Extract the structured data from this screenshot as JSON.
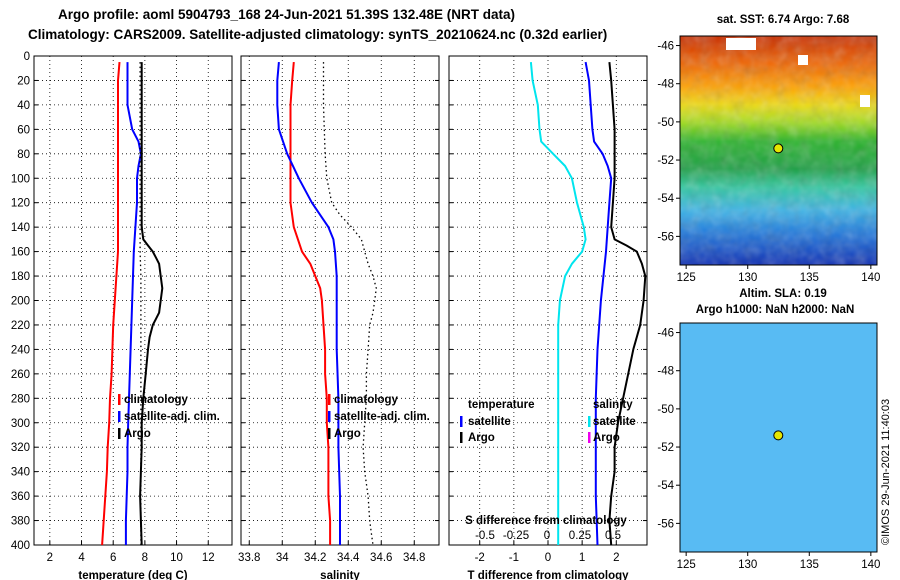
{
  "header": {
    "line1": "Argo profile: aoml 5904793_168 24-Jun-2021 51.39S 132.48E (NRT data)",
    "line2": "Climatology: CARS2009. Satellite-adjusted climatology: synTS_20210624.nc (0.32d earlier)"
  },
  "colors": {
    "argo": "#000000",
    "climatology": "#ff0000",
    "satellite": "#0000ff",
    "diff_temp": "#00e5ee",
    "diff_sal_argo": "#ee00ee"
  },
  "depth_axis": {
    "ticks": [
      0,
      20,
      40,
      60,
      80,
      100,
      120,
      140,
      160,
      180,
      200,
      220,
      240,
      260,
      280,
      300,
      320,
      340,
      360,
      380,
      400
    ],
    "range": [
      0,
      400
    ]
  },
  "chart_data": [
    {
      "type": "line",
      "title": "",
      "xlabel": "temperature (deg C)",
      "ylabel": "",
      "xlim": [
        1,
        13.5
      ],
      "ylim": [
        400,
        0
      ],
      "xticks": [
        2,
        4,
        6,
        8,
        10,
        12
      ],
      "legend": {
        "items": [
          {
            "label": "climatology",
            "color": "#ff0000"
          },
          {
            "label": "satellite-adj. clim.",
            "color": "#0000ff"
          },
          {
            "label": "Argo",
            "color": "#000000"
          }
        ]
      },
      "series": [
        {
          "name": "climatology",
          "color": "#ff0000",
          "dash": false,
          "depth": [
            5,
            20,
            40,
            60,
            80,
            100,
            120,
            140,
            160,
            180,
            200,
            220,
            240,
            260,
            280,
            300,
            320,
            340,
            360,
            380,
            400
          ],
          "values": [
            6.4,
            6.3,
            6.3,
            6.3,
            6.3,
            6.3,
            6.3,
            6.3,
            6.3,
            6.2,
            6.1,
            6.0,
            5.95,
            5.9,
            5.8,
            5.75,
            5.65,
            5.6,
            5.5,
            5.4,
            5.3
          ]
        },
        {
          "name": "satellite-adj. clim.",
          "color": "#0000ff",
          "dash": false,
          "depth": [
            5,
            20,
            40,
            60,
            70,
            80,
            90,
            100,
            120,
            140,
            160,
            180,
            200,
            220,
            240,
            260,
            280,
            300,
            320,
            340,
            360,
            380,
            400
          ],
          "values": [
            6.9,
            6.9,
            6.9,
            7.2,
            7.6,
            7.75,
            7.6,
            7.5,
            7.5,
            7.4,
            7.3,
            7.25,
            7.2,
            7.15,
            7.1,
            7.05,
            7.0,
            6.95,
            6.9,
            6.9,
            6.85,
            6.8,
            6.8
          ]
        },
        {
          "name": "Argo",
          "color": "#000000",
          "dash": false,
          "depth": [
            5,
            20,
            40,
            60,
            80,
            100,
            120,
            140,
            150,
            155,
            160,
            165,
            170,
            180,
            190,
            200,
            210,
            215,
            220,
            230,
            240,
            260,
            280,
            300,
            320,
            340,
            360,
            380,
            400
          ],
          "values": [
            7.8,
            7.8,
            7.8,
            7.8,
            7.8,
            7.8,
            7.8,
            7.8,
            7.9,
            8.2,
            8.5,
            8.7,
            8.9,
            9.0,
            9.1,
            9.0,
            8.9,
            8.7,
            8.5,
            8.3,
            8.2,
            8.05,
            7.9,
            7.8,
            7.8,
            7.75,
            7.7,
            7.75,
            7.8
          ]
        },
        {
          "name": "Argo-dots",
          "color": "#000000",
          "dash": true,
          "depth": [
            5,
            20,
            40,
            60,
            80,
            100,
            120,
            140,
            160,
            180,
            200,
            220,
            240,
            260,
            280,
            300,
            320,
            340,
            360,
            380,
            400
          ],
          "values": [
            7.7,
            7.7,
            7.7,
            7.7,
            7.7,
            7.7,
            7.7,
            7.7,
            7.7,
            7.75,
            7.75,
            7.75,
            7.75,
            7.75,
            7.75,
            7.75,
            7.75,
            7.75,
            7.75,
            7.75,
            7.75
          ]
        }
      ]
    },
    {
      "type": "line",
      "title": "",
      "xlabel": "salinity",
      "ylabel": "",
      "xlim": [
        33.75,
        34.95
      ],
      "ylim": [
        400,
        0
      ],
      "xticks": [
        33.8,
        34,
        34.2,
        34.4,
        34.6,
        34.8
      ],
      "xtick_labels": [
        "33.8",
        "34",
        "34.2",
        "34.4",
        "34.6",
        "34.8"
      ],
      "legend": {
        "items": [
          {
            "label": "climatology",
            "color": "#ff0000"
          },
          {
            "label": "satellite-adj. clim.",
            "color": "#0000ff"
          },
          {
            "label": "Argo",
            "color": "#000000"
          }
        ]
      },
      "series": [
        {
          "name": "climatology",
          "color": "#ff0000",
          "dash": false,
          "depth": [
            5,
            20,
            40,
            60,
            80,
            100,
            120,
            140,
            160,
            170,
            180,
            190,
            200,
            220,
            240,
            260,
            280,
            300,
            320,
            340,
            360,
            380,
            400
          ],
          "values": [
            34.07,
            34.06,
            34.05,
            34.05,
            34.05,
            34.05,
            34.05,
            34.07,
            34.12,
            34.17,
            34.2,
            34.23,
            34.24,
            34.25,
            34.26,
            34.26,
            34.27,
            34.27,
            34.28,
            34.28,
            34.28,
            34.29,
            34.29
          ]
        },
        {
          "name": "satellite-adj. clim.",
          "color": "#0000ff",
          "dash": false,
          "depth": [
            5,
            20,
            40,
            60,
            80,
            100,
            120,
            140,
            150,
            160,
            180,
            200,
            240,
            280,
            320,
            360,
            400
          ],
          "values": [
            33.98,
            33.97,
            33.97,
            33.98,
            34.03,
            34.1,
            34.18,
            34.28,
            34.31,
            34.32,
            34.33,
            34.33,
            34.33,
            34.34,
            34.34,
            34.35,
            34.35
          ]
        },
        {
          "name": "Argo",
          "color": "#000000",
          "dash": true,
          "depth": [
            5,
            40,
            80,
            100,
            120,
            130,
            140,
            150,
            160,
            170,
            180,
            190,
            200,
            210,
            220,
            240,
            260,
            280,
            300,
            320,
            340,
            360,
            380,
            390,
            400
          ],
          "values": [
            34.25,
            34.25,
            34.26,
            34.27,
            34.3,
            34.35,
            34.42,
            34.48,
            34.5,
            34.52,
            34.55,
            34.57,
            34.56,
            34.55,
            34.53,
            34.52,
            34.51,
            34.51,
            34.5,
            34.49,
            34.5,
            34.52,
            34.53,
            34.54,
            34.55
          ]
        }
      ]
    },
    {
      "type": "line",
      "title": "",
      "xlabel": "T difference from climatology",
      "ylabel": "",
      "xlim": [
        -2.9,
        2.9
      ],
      "ylim": [
        400,
        0
      ],
      "xticks": [
        -2,
        -1,
        0,
        1,
        2
      ],
      "top_axis_label": "S difference from climatology",
      "top_axis_ticks": [
        "-0.5",
        "-0.25",
        "0",
        "0.25",
        "0.5"
      ],
      "legend": {
        "left_title": "temperature",
        "right_title": "salinity",
        "items_left": [
          {
            "label": "satellite",
            "color": "#0000ff"
          },
          {
            "label": "Argo",
            "color": "#000000"
          }
        ],
        "items_right": [
          {
            "label": "satellite",
            "color": "#00e5ee"
          },
          {
            "label": "Argo",
            "color": "#ee00ee"
          }
        ]
      },
      "series": [
        {
          "name": "satellite temperature diff",
          "color": "#00e5ee",
          "dash": false,
          "depth": [
            5,
            20,
            40,
            60,
            70,
            80,
            90,
            100,
            120,
            140,
            150,
            160,
            170,
            180,
            200,
            220,
            240,
            260,
            280,
            300,
            320,
            340,
            360,
            380,
            400
          ],
          "values": [
            -0.5,
            -0.45,
            -0.3,
            -0.25,
            -0.2,
            0.15,
            0.5,
            0.7,
            0.85,
            1.05,
            1.1,
            1.0,
            0.7,
            0.5,
            0.35,
            0.3,
            0.3,
            0.3,
            0.3,
            0.3,
            0.3,
            0.3,
            0.3,
            0.3,
            0.3
          ]
        },
        {
          "name": "satellite salinity diff",
          "color": "#0000ff",
          "dash": false,
          "depth": [
            5,
            20,
            40,
            60,
            70,
            80,
            90,
            100,
            120,
            140,
            160,
            200,
            240,
            280,
            320,
            360,
            400
          ],
          "values": [
            1.1,
            1.2,
            1.25,
            1.3,
            1.35,
            1.6,
            1.75,
            1.85,
            1.8,
            1.75,
            1.7,
            1.55,
            1.45,
            1.4,
            1.4,
            1.4,
            1.45
          ]
        },
        {
          "name": "Argo diff",
          "color": "#000000",
          "dash": false,
          "depth": [
            5,
            20,
            40,
            60,
            80,
            100,
            120,
            140,
            150,
            155,
            160,
            170,
            180,
            200,
            220,
            240,
            260,
            280,
            300,
            320,
            340,
            360,
            380,
            400
          ],
          "values": [
            1.8,
            1.85,
            1.9,
            1.95,
            1.95,
            1.95,
            1.9,
            1.85,
            1.95,
            2.3,
            2.6,
            2.75,
            2.85,
            2.8,
            2.7,
            2.5,
            2.35,
            2.2,
            2.05,
            1.95,
            1.95,
            1.85,
            1.8,
            1.85
          ]
        }
      ]
    }
  ],
  "maps": {
    "top": {
      "title": "sat. SST: 6.74 Argo: 7.68",
      "lat_ticks": [
        "-46",
        "-48",
        "-50",
        "-52",
        "-54",
        "-56"
      ],
      "lon_ticks": [
        "125",
        "130",
        "135",
        "140"
      ],
      "lon_range": [
        124.5,
        140.5
      ],
      "lat_range": [
        -57.5,
        -45.5
      ],
      "marker": {
        "lon": 132.48,
        "lat": -51.39
      }
    },
    "bottom": {
      "title_line1": "Altim. SLA: 0.19",
      "title_line2": "Argo h1000: NaN h2000: NaN",
      "lat_ticks": [
        "-46",
        "-48",
        "-50",
        "-52",
        "-54",
        "-56"
      ],
      "lon_ticks": [
        "125",
        "130",
        "135",
        "140"
      ],
      "lon_range": [
        124.5,
        140.5
      ],
      "lat_range": [
        -57.5,
        -45.5
      ],
      "marker": {
        "lon": 132.48,
        "lat": -51.39
      }
    }
  },
  "stamp": "©IMOS 29-Jun-2021 11:40:03"
}
